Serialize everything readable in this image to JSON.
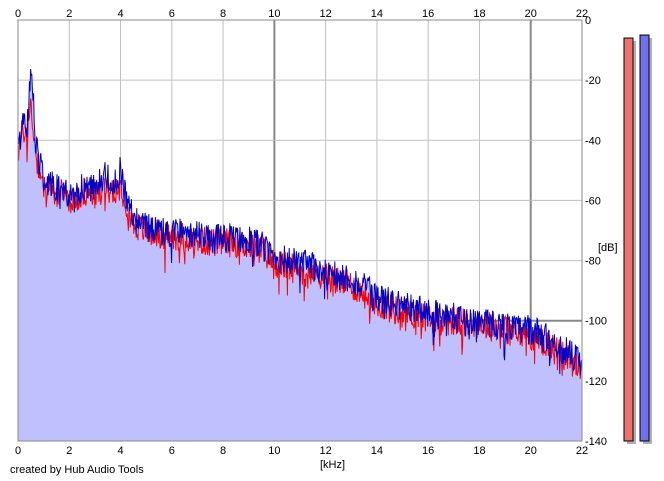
{
  "credit": "created by Hub Audio Tools",
  "chart_data": {
    "type": "area",
    "xlabel": "[kHz]",
    "ylabel": "[dB]",
    "xlim": [
      0,
      22
    ],
    "ylim": [
      -140,
      0
    ],
    "x_ticks": [
      0,
      2,
      4,
      6,
      8,
      10,
      12,
      14,
      16,
      18,
      20,
      22
    ],
    "x_tick_labels": [
      "0",
      "2",
      "4",
      "6",
      "8",
      "10",
      "12",
      "14",
      "16",
      "18",
      "20",
      "22"
    ],
    "y_ticks": [
      0,
      -20,
      -40,
      -60,
      -80,
      -100,
      -120,
      -140
    ],
    "y_tick_labels": [
      "0",
      "-20",
      "-40",
      "-60",
      "-80",
      "-100",
      "-120",
      "-140"
    ],
    "grid": true,
    "series": [
      {
        "color": "#ff0000",
        "x": [
          0,
          0.1,
          0.2,
          0.35,
          0.5,
          0.7,
          1.0,
          1.4,
          1.8,
          2.2,
          2.6,
          3.0,
          3.4,
          3.8,
          4.0,
          4.2,
          4.5,
          5.0,
          5.5,
          6.0,
          6.5,
          7.0,
          7.5,
          8.0,
          8.5,
          9.0,
          9.5,
          10.0,
          10.5,
          11.0,
          11.5,
          12.0,
          12.5,
          13.0,
          13.5,
          14.0,
          14.5,
          15.0,
          15.5,
          16.0,
          16.5,
          17.0,
          17.5,
          18.0,
          18.5,
          19.0,
          19.5,
          20.0,
          20.5,
          21.0,
          21.5,
          22.0
        ],
        "y": [
          -44,
          -40,
          -36,
          -39,
          -28,
          -45,
          -55,
          -57,
          -58,
          -60,
          -57,
          -58,
          -55,
          -56,
          -55,
          -60,
          -68,
          -70,
          -71,
          -72,
          -72,
          -73,
          -74,
          -74,
          -74,
          -75,
          -76,
          -81,
          -82,
          -83,
          -84,
          -85,
          -87,
          -88,
          -91,
          -94,
          -96,
          -97,
          -98,
          -99,
          -100,
          -100,
          -101,
          -101,
          -102,
          -103,
          -104,
          -105,
          -107,
          -110,
          -113,
          -116
        ]
      },
      {
        "color": "#0000cc",
        "x": [
          0,
          0.1,
          0.2,
          0.35,
          0.5,
          0.7,
          1.0,
          1.4,
          1.8,
          2.2,
          2.6,
          3.0,
          3.4,
          3.8,
          4.0,
          4.2,
          4.5,
          5.0,
          5.5,
          6.0,
          6.5,
          7.0,
          7.5,
          8.0,
          8.5,
          9.0,
          9.5,
          10.0,
          10.5,
          11.0,
          11.5,
          12.0,
          12.5,
          13.0,
          13.5,
          14.0,
          14.5,
          15.0,
          15.5,
          16.0,
          16.5,
          17.0,
          17.5,
          18.0,
          18.5,
          19.0,
          19.5,
          20.0,
          20.5,
          21.0,
          21.5,
          22.0
        ],
        "y": [
          -42,
          -38,
          -34,
          -37,
          -14,
          -42,
          -53,
          -55,
          -57,
          -59,
          -55,
          -56,
          -52,
          -54,
          -50,
          -58,
          -66,
          -69,
          -70,
          -71,
          -71,
          -71,
          -73,
          -73,
          -72,
          -73,
          -75,
          -79,
          -80,
          -81,
          -82,
          -83,
          -85,
          -86,
          -89,
          -92,
          -94,
          -95,
          -96,
          -97,
          -98,
          -99,
          -100,
          -100,
          -101,
          -102,
          -103,
          -103,
          -105,
          -108,
          -111,
          -114
        ]
      }
    ],
    "levels": [
      {
        "color": "#f07070",
        "value": -6
      },
      {
        "color": "#7070f0",
        "value": -5
      }
    ]
  }
}
